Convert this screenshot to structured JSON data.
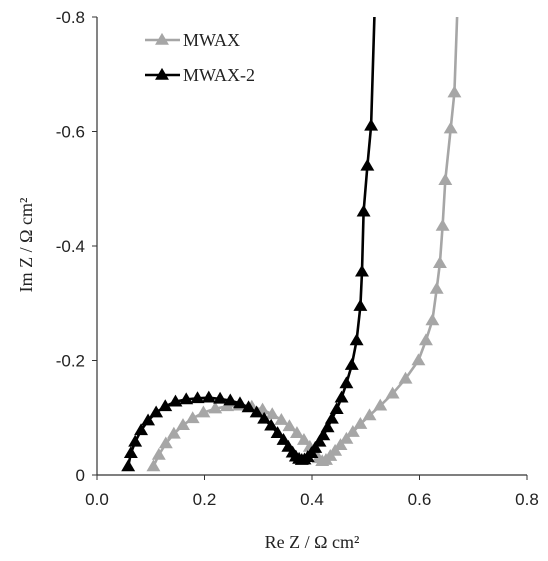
{
  "chart_data": {
    "type": "line",
    "xlabel": "Re Z / Ω cm²",
    "ylabel": "Im Z / Ω cm²",
    "xlim": [
      0,
      0.8
    ],
    "ylim": [
      0,
      -0.8
    ],
    "x_ticks": [
      "0.0",
      "0.2",
      "0.4",
      "0.6",
      "0.8"
    ],
    "y_ticks": [
      "0",
      "-0.2",
      "-0.4",
      "-0.6",
      "-0.8"
    ],
    "x_tick_values": [
      0,
      0.2,
      0.4,
      0.6,
      0.8
    ],
    "y_tick_values": [
      0,
      -0.2,
      -0.4,
      -0.6,
      -0.8
    ],
    "grid": false,
    "legend_position": "top-left",
    "series": [
      {
        "name": "MWAX",
        "color": "#a6a6a6",
        "marker": "triangle",
        "points": [
          [
            0.105,
            -0.015
          ],
          [
            0.115,
            -0.035
          ],
          [
            0.128,
            -0.055
          ],
          [
            0.143,
            -0.072
          ],
          [
            0.16,
            -0.087
          ],
          [
            0.178,
            -0.099
          ],
          [
            0.198,
            -0.109
          ],
          [
            0.22,
            -0.116
          ],
          [
            0.242,
            -0.12
          ],
          [
            0.265,
            -0.121
          ],
          [
            0.288,
            -0.119
          ],
          [
            0.308,
            -0.114
          ],
          [
            0.326,
            -0.106
          ],
          [
            0.343,
            -0.096
          ],
          [
            0.358,
            -0.085
          ],
          [
            0.372,
            -0.073
          ],
          [
            0.385,
            -0.061
          ],
          [
            0.396,
            -0.049
          ],
          [
            0.405,
            -0.038
          ],
          [
            0.412,
            -0.029
          ],
          [
            0.419,
            -0.024
          ],
          [
            0.426,
            -0.026
          ],
          [
            0.434,
            -0.033
          ],
          [
            0.443,
            -0.042
          ],
          [
            0.453,
            -0.052
          ],
          [
            0.464,
            -0.063
          ],
          [
            0.476,
            -0.075
          ],
          [
            0.49,
            -0.089
          ],
          [
            0.507,
            -0.104
          ],
          [
            0.527,
            -0.121
          ],
          [
            0.55,
            -0.142
          ],
          [
            0.574,
            -0.168
          ],
          [
            0.598,
            -0.2
          ],
          [
            0.612,
            -0.235
          ],
          [
            0.624,
            -0.27
          ],
          [
            0.632,
            -0.325
          ],
          [
            0.638,
            -0.37
          ],
          [
            0.643,
            -0.435
          ],
          [
            0.648,
            -0.515
          ],
          [
            0.658,
            -0.605
          ],
          [
            0.665,
            -0.668
          ],
          [
            0.67,
            -0.8
          ]
        ]
      },
      {
        "name": "MWAX-2",
        "color": "#000000",
        "marker": "triangle",
        "points": [
          [
            0.058,
            -0.015
          ],
          [
            0.063,
            -0.038
          ],
          [
            0.071,
            -0.058
          ],
          [
            0.082,
            -0.078
          ],
          [
            0.095,
            -0.095
          ],
          [
            0.11,
            -0.109
          ],
          [
            0.127,
            -0.12
          ],
          [
            0.146,
            -0.128
          ],
          [
            0.166,
            -0.132
          ],
          [
            0.187,
            -0.134
          ],
          [
            0.208,
            -0.135
          ],
          [
            0.229,
            -0.133
          ],
          [
            0.248,
            -0.13
          ],
          [
            0.266,
            -0.125
          ],
          [
            0.282,
            -0.118
          ],
          [
            0.297,
            -0.109
          ],
          [
            0.311,
            -0.098
          ],
          [
            0.324,
            -0.086
          ],
          [
            0.336,
            -0.073
          ],
          [
            0.347,
            -0.061
          ],
          [
            0.356,
            -0.049
          ],
          [
            0.364,
            -0.039
          ],
          [
            0.37,
            -0.032
          ],
          [
            0.376,
            -0.028
          ],
          [
            0.381,
            -0.026
          ],
          [
            0.386,
            -0.027
          ],
          [
            0.392,
            -0.031
          ],
          [
            0.399,
            -0.038
          ],
          [
            0.406,
            -0.047
          ],
          [
            0.414,
            -0.058
          ],
          [
            0.421,
            -0.069
          ],
          [
            0.429,
            -0.083
          ],
          [
            0.437,
            -0.098
          ],
          [
            0.446,
            -0.115
          ],
          [
            0.455,
            -0.135
          ],
          [
            0.464,
            -0.16
          ],
          [
            0.474,
            -0.192
          ],
          [
            0.483,
            -0.235
          ],
          [
            0.49,
            -0.295
          ],
          [
            0.493,
            -0.355
          ],
          [
            0.496,
            -0.46
          ],
          [
            0.503,
            -0.54
          ],
          [
            0.51,
            -0.61
          ],
          [
            0.516,
            -0.8
          ]
        ]
      }
    ]
  }
}
